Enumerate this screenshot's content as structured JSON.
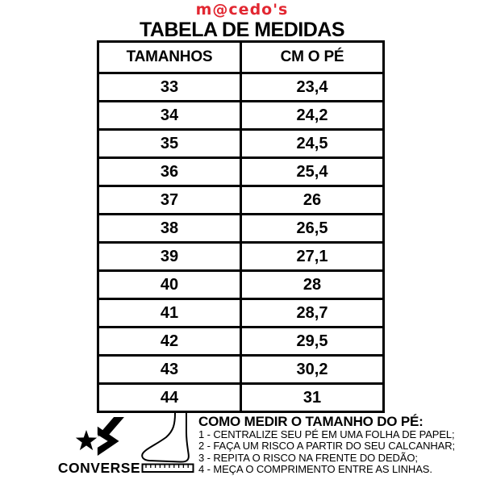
{
  "brand": {
    "logo_text": "m@cedo's",
    "logo_color": "#e22731"
  },
  "title": "TABELA DE MEDIDAS",
  "table": {
    "headers": [
      "TAMANHOS",
      "CM O PÉ"
    ],
    "rows": [
      [
        "33",
        "23,4"
      ],
      [
        "34",
        "24,2"
      ],
      [
        "35",
        "24,5"
      ],
      [
        "36",
        "25,4"
      ],
      [
        "37",
        "26"
      ],
      [
        "38",
        "26,5"
      ],
      [
        "39",
        "27,1"
      ],
      [
        "40",
        "28"
      ],
      [
        "41",
        "28,7"
      ],
      [
        "42",
        "29,5"
      ],
      [
        "43",
        "30,2"
      ],
      [
        "44",
        "31"
      ]
    ]
  },
  "footer": {
    "converse_wordmark": "CONVERSE",
    "icons": {
      "brand_icon": "converse-star-chevron-icon",
      "diagram_icon": "foot-on-ruler-icon"
    },
    "howto": {
      "heading": "COMO MEDIR O TAMANHO DO PÉ:",
      "steps": [
        "1 - CENTRALIZE SEU PÉ EM UMA FOLHA DE PAPEL;",
        "2 - FAÇA UM RISCO A PARTIR DO SEU CALCANHAR;",
        "3 - REPITA O RISCO NA FRENTE DO DEDÃO;",
        "4 - MEÇA O COMPRIMENTO ENTRE AS LINHAS."
      ]
    }
  }
}
